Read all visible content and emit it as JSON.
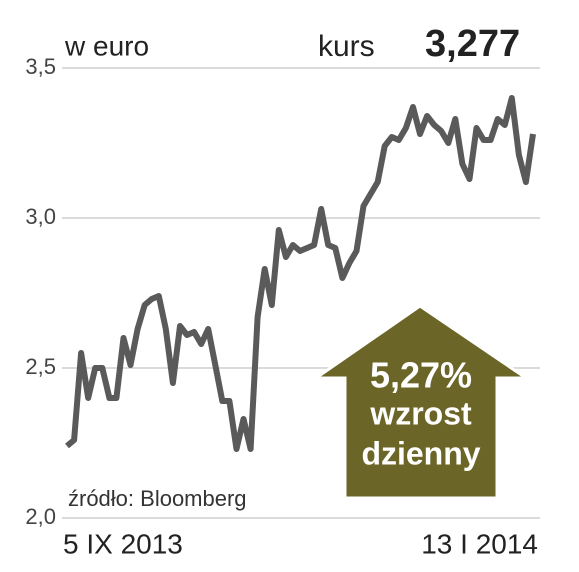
{
  "chart_data": {
    "type": "line",
    "subtitle": "w euro",
    "price_label": "kurs",
    "last_price": {
      "value": 3.277,
      "label": "3,277"
    },
    "source": "źródło: Bloomberg",
    "change": {
      "value": 5.27,
      "label": "5,27%"
    },
    "change_text": [
      "wzrost",
      "dzienny"
    ],
    "color": "#5a5a5a",
    "change_color": "#6b6628",
    "grid": true,
    "ylim": [
      2.0,
      3.5
    ],
    "yticks": [
      {
        "value": 2.0,
        "label": "2,0"
      },
      {
        "value": 2.5,
        "label": "2,5"
      },
      {
        "value": 3.0,
        "label": "3,0"
      },
      {
        "value": 3.5,
        "label": "3,5"
      }
    ],
    "categories": [
      "5 IX 2013",
      null,
      null,
      null,
      null,
      null,
      null,
      null,
      null,
      null,
      null,
      null,
      null,
      null,
      null,
      null,
      null,
      null,
      null,
      null,
      null,
      null,
      null,
      null,
      null,
      null,
      null,
      null,
      null,
      null,
      null,
      null,
      null,
      null,
      null,
      null,
      null,
      null,
      null,
      null,
      null,
      null,
      null,
      null,
      null,
      null,
      null,
      null,
      null,
      null,
      null,
      null,
      null,
      null,
      null,
      null,
      null,
      null,
      null,
      null,
      null,
      null,
      null,
      null,
      null,
      null,
      "13 I 2014"
    ],
    "values": [
      2.24,
      2.26,
      2.55,
      2.4,
      2.5,
      2.5,
      2.4,
      2.4,
      2.6,
      2.51,
      2.63,
      2.71,
      2.73,
      2.74,
      2.63,
      2.45,
      2.64,
      2.61,
      2.62,
      2.58,
      2.63,
      2.51,
      2.39,
      2.39,
      2.23,
      2.33,
      2.23,
      2.67,
      2.83,
      2.71,
      2.96,
      2.87,
      2.91,
      2.89,
      2.9,
      2.91,
      3.03,
      2.91,
      2.9,
      2.8,
      2.85,
      2.89,
      3.04,
      3.08,
      3.12,
      3.24,
      3.27,
      3.26,
      3.3,
      3.37,
      3.28,
      3.34,
      3.31,
      3.29,
      3.25,
      3.33,
      3.18,
      3.13,
      3.3,
      3.26,
      3.26,
      3.33,
      3.31,
      3.4,
      3.21,
      3.12,
      3.28
    ]
  }
}
